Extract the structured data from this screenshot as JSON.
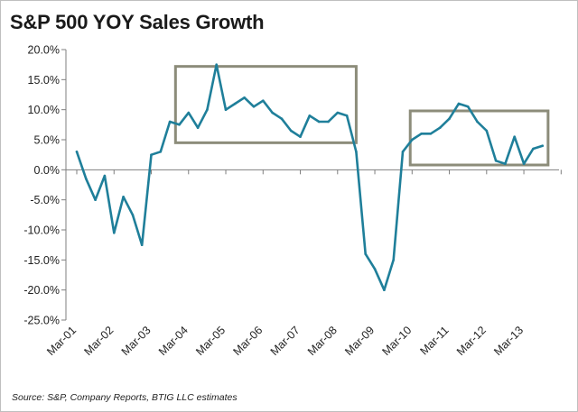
{
  "chart_data": {
    "type": "line",
    "title": "S&P 500 YOY Sales Growth",
    "source": "Source: S&P, Company Reports, BTIG LLC estimates",
    "xlabel": "",
    "ylabel": "",
    "ylim": [
      -25,
      20
    ],
    "y_ticks": [
      20,
      15,
      10,
      5,
      0,
      -5,
      -10,
      -15,
      -20,
      -25
    ],
    "y_tick_labels": [
      "20.0%",
      "15.0%",
      "10.0%",
      "5.0%",
      "0.0%",
      "-5.0%",
      "-10.0%",
      "-15.0%",
      "-20.0%",
      "-25.0%"
    ],
    "x_tick_labels": [
      "Mar-01",
      "Mar-02",
      "Mar-03",
      "Mar-04",
      "Mar-05",
      "Mar-06",
      "Mar-07",
      "Mar-08",
      "Mar-09",
      "Mar-10",
      "Mar-11",
      "Mar-12",
      "Mar-13"
    ],
    "x_tick_years": [
      2001,
      2002,
      2003,
      2004,
      2005,
      2006,
      2007,
      2008,
      2009,
      2010,
      2011,
      2012,
      2013
    ],
    "xlim": [
      2001,
      2013.75
    ],
    "line_color": "#1f7f9a",
    "box_color": "#8c8c7a",
    "series": [
      {
        "name": "S&P 500 YOY Sales Growth",
        "x": [
          2001.0,
          2001.25,
          2001.5,
          2001.75,
          2002.0,
          2002.25,
          2002.5,
          2002.75,
          2003.0,
          2003.25,
          2003.5,
          2003.75,
          2004.0,
          2004.25,
          2004.5,
          2004.75,
          2005.0,
          2005.25,
          2005.5,
          2005.75,
          2006.0,
          2006.25,
          2006.5,
          2006.75,
          2007.0,
          2007.25,
          2007.5,
          2007.75,
          2008.0,
          2008.25,
          2008.5,
          2008.75,
          2009.0,
          2009.25,
          2009.5,
          2009.75,
          2010.0,
          2010.25,
          2010.5,
          2010.75,
          2011.0,
          2011.25,
          2011.5,
          2011.75,
          2012.0,
          2012.25,
          2012.5,
          2012.75,
          2013.0,
          2013.25,
          2013.5
        ],
        "y": [
          3.0,
          -1.5,
          -5.0,
          -1.0,
          -10.5,
          -4.5,
          -7.5,
          -12.5,
          2.5,
          3.0,
          8.0,
          7.5,
          9.5,
          7.0,
          10.0,
          17.5,
          10.0,
          11.0,
          12.0,
          10.5,
          11.5,
          9.5,
          8.5,
          6.5,
          5.5,
          9.0,
          8.0,
          8.0,
          9.5,
          9.0,
          3.0,
          -14.0,
          -16.5,
          -20.0,
          -15.0,
          3.0,
          5.0,
          6.0,
          6.0,
          7.0,
          8.5,
          11.0,
          10.5,
          8.0,
          6.5,
          1.5,
          1.0,
          5.5,
          1.0,
          3.5,
          4.0
        ]
      }
    ],
    "annotations": [
      {
        "type": "box",
        "x0": 2003.65,
        "x1": 2008.5,
        "y0": 4.5,
        "y1": 17.2
      },
      {
        "type": "box",
        "x0": 2009.95,
        "x1": 2013.65,
        "y0": 0.8,
        "y1": 9.8
      }
    ],
    "grid": false,
    "legend": "none"
  }
}
